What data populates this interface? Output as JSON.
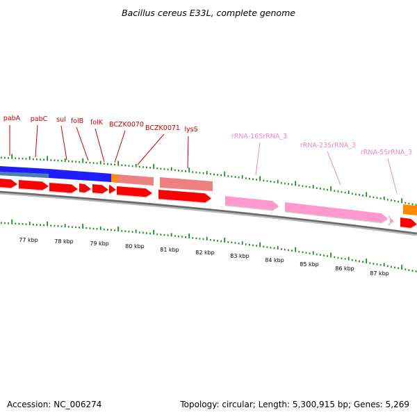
{
  "title": "Bacillus cereus E33L, complete genome",
  "footer": {
    "accession": "Accession: NC_006274",
    "topology": "Topology: circular; Length: 5,300,915 bp; Genes: 5,269"
  },
  "colors": {
    "gene_label": "#cc0000",
    "rna_label": "#ee88c4",
    "cds": "#ff0000",
    "rrna": "#ff99cc",
    "tick": "#1a8a1a",
    "backbone": "#808080",
    "blue_cog": "#1e1eff",
    "steel_cog": "#4a7fb0",
    "salmon_cog": "#ee8080",
    "orange_cog": "#ff8c00"
  },
  "scale_labels": [
    "77 kbp",
    "78 kbp",
    "79 kbp",
    "80 kbp",
    "81 kbp",
    "82 kbp",
    "83 kbp",
    "84 kbp",
    "85 kbp",
    "86 kbp",
    "87 kbp"
  ],
  "gene_labels": [
    {
      "text": "pabA",
      "kind": "gene"
    },
    {
      "text": "pabC",
      "kind": "gene"
    },
    {
      "text": "sul",
      "kind": "gene"
    },
    {
      "text": "folB",
      "kind": "gene"
    },
    {
      "text": "folK",
      "kind": "gene"
    },
    {
      "text": "BCZK0070",
      "kind": "gene"
    },
    {
      "text": "BCZK0071",
      "kind": "gene"
    },
    {
      "text": "lysS",
      "kind": "gene"
    },
    {
      "text": "rRNA-16SrRNA_3",
      "kind": "rna"
    },
    {
      "text": "rRNA-23SrRNA_3",
      "kind": "rna"
    },
    {
      "text": "rRNA-5SrRNA_3",
      "kind": "rna"
    }
  ]
}
